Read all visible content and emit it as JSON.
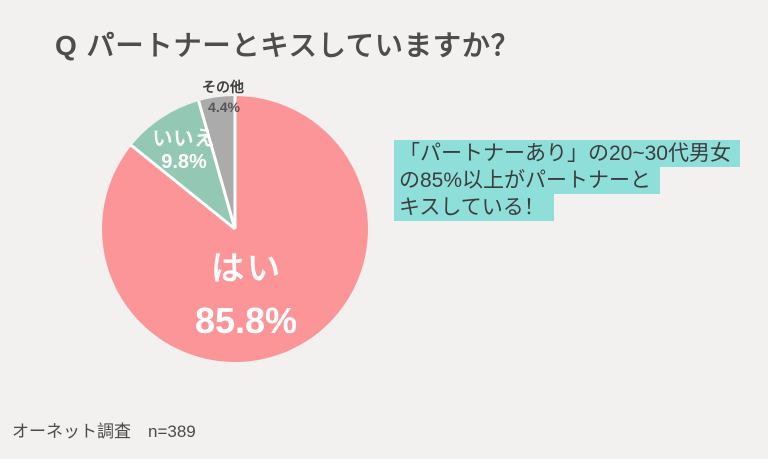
{
  "title": "Q パートナーとキスしていますか？",
  "chart_data": {
    "type": "pie",
    "title": "Q パートナーとキスしていますか？",
    "start_angle_deg": 0,
    "direction": "clockwise",
    "separator_color": "#ffffff",
    "labels_inside": true,
    "legend": "none",
    "slices": [
      {
        "label": "はい",
        "value": 85.8,
        "pct_label": "85.8%",
        "color": "#fb9598"
      },
      {
        "label": "いいえ",
        "value": 9.8,
        "pct_label": "9.8%",
        "color": "#92c8b4"
      },
      {
        "label": "その他",
        "value": 4.4,
        "pct_label": "4.4%",
        "color": "#ababab"
      }
    ]
  },
  "callout": {
    "lines": [
      "「パートナーあり」の20~30代男女",
      "の85%以上がパートナーと",
      "キスしている！"
    ],
    "highlight_color": "#8ededa",
    "text_color": "#3d3d3d"
  },
  "footer": {
    "text": "オーネット調査　n=389"
  },
  "page": {
    "background": "#f2f1ef"
  }
}
